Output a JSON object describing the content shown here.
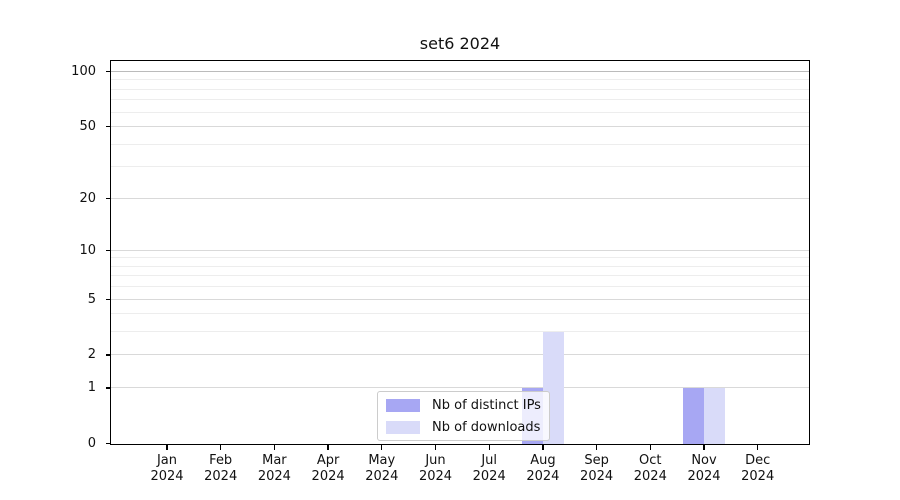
{
  "chart_data": {
    "type": "bar",
    "title": "set6 2024",
    "categories": [
      "Jan 2024",
      "Feb 2024",
      "Mar 2024",
      "Apr 2024",
      "May 2024",
      "Jun 2024",
      "Jul 2024",
      "Aug 2024",
      "Sep 2024",
      "Oct 2024",
      "Nov 2024",
      "Dec 2024"
    ],
    "series": [
      {
        "name": "Nb of distinct IPs",
        "color": "#a7a7f3",
        "values": [
          0,
          0,
          0,
          0,
          0,
          0,
          0,
          1,
          0,
          0,
          1,
          0
        ]
      },
      {
        "name": "Nb of downloads",
        "color": "#d9dbf9",
        "values": [
          0,
          0,
          0,
          0,
          0,
          0,
          0,
          3,
          0,
          0,
          1,
          0
        ]
      }
    ],
    "xlabel": "",
    "ylabel": "",
    "yscale": "log1p",
    "ylim": [
      0,
      114
    ],
    "y_tick_values": [
      0,
      1,
      2,
      5,
      10,
      20,
      50,
      100
    ],
    "y_tick_labels": [
      "0",
      "1",
      "2",
      "5",
      "10",
      "20",
      "50",
      "100"
    ],
    "y_minor_gridline_values": [
      3,
      4,
      6,
      7,
      8,
      9,
      30,
      40,
      60,
      70,
      80,
      90
    ],
    "grid": true,
    "legend_position": "lower center"
  },
  "colors": {
    "background": "#ffffff",
    "axis": "#000000",
    "grid_major": "#d9d9d9",
    "grid_minor": "#ededed",
    "grid_top": "#bbbbbb",
    "legend_border": "#cccccc"
  }
}
